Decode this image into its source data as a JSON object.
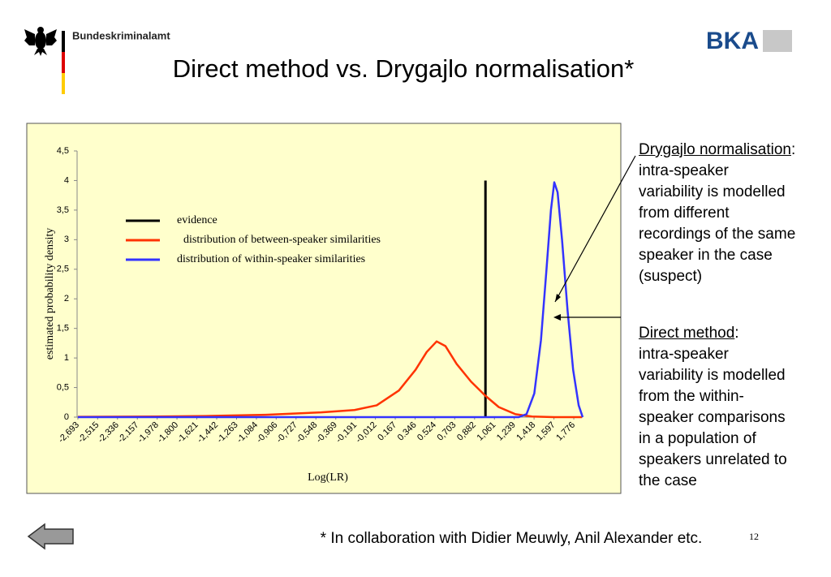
{
  "header": {
    "org": "Bundeskriminalamt",
    "logo": "BKA",
    "title": "Direct method vs. Drygajlo normalisation*",
    "page": "12"
  },
  "notes": [
    {
      "heading": "Drygajlo normalisation",
      "heading_suffix": ":",
      "lines": [
        "intra-speaker",
        "variability is modelled",
        "from different",
        "recordings of the same",
        "speaker in the case",
        "(suspect)"
      ]
    },
    {
      "heading": "Direct method",
      "heading_suffix": ":",
      "lines": [
        "intra-speaker",
        "variability is modelled",
        "from the within-",
        "speaker comparisons",
        "in a population of",
        "speakers unrelated to",
        "the case"
      ]
    }
  ],
  "footnote": "* In collaboration with Didier Meuwly, Anil Alexander etc.",
  "chart_data": {
    "type": "line",
    "xlabel": "Log(LR)",
    "ylabel": "estimated probability density",
    "xlim": [
      -2.7,
      1.856
    ],
    "ylim": [
      0,
      4.5
    ],
    "xticks": [
      {
        "value": -2.693,
        "label": "-2,693"
      },
      {
        "value": -2.515,
        "label": "-2,515"
      },
      {
        "value": -2.336,
        "label": "-2,336"
      },
      {
        "value": -2.157,
        "label": "-2,157"
      },
      {
        "value": -1.978,
        "label": "-1,978"
      },
      {
        "value": -1.8,
        "label": "-1,800"
      },
      {
        "value": -1.621,
        "label": "-1,621"
      },
      {
        "value": -1.442,
        "label": "-1,442"
      },
      {
        "value": -1.263,
        "label": "-1,263"
      },
      {
        "value": -1.084,
        "label": "-1,084"
      },
      {
        "value": -0.906,
        "label": "-0,906"
      },
      {
        "value": -0.727,
        "label": "-0,727"
      },
      {
        "value": -0.548,
        "label": "-0,548"
      },
      {
        "value": -0.369,
        "label": "-0,369"
      },
      {
        "value": -0.191,
        "label": "-0,191"
      },
      {
        "value": -0.012,
        "label": "-0,012"
      },
      {
        "value": 0.167,
        "label": "0.167"
      },
      {
        "value": 0.346,
        "label": "0.346"
      },
      {
        "value": 0.524,
        "label": "0.524"
      },
      {
        "value": 0.703,
        "label": "0,703"
      },
      {
        "value": 0.882,
        "label": "0,882"
      },
      {
        "value": 1.061,
        "label": "1,061"
      },
      {
        "value": 1.239,
        "label": "1,239"
      },
      {
        "value": 1.418,
        "label": "1,418"
      },
      {
        "value": 1.597,
        "label": "1,597"
      },
      {
        "value": 1.776,
        "label": "1,776"
      }
    ],
    "yticks": [
      0,
      {
        "value": 0.5,
        "label": "0,5"
      },
      1,
      {
        "value": 1.5,
        "label": "1,5"
      },
      2,
      {
        "value": 2.5,
        "label": "2,5"
      },
      3,
      {
        "value": 3.5,
        "label": "3,5"
      },
      4,
      {
        "value": 4.5,
        "label": "4,5"
      }
    ],
    "series": [
      {
        "name": "evidence",
        "color": "#000000",
        "x": [
          0.98,
          0.98
        ],
        "values": [
          0,
          4
        ]
      },
      {
        "name": "distribution of between-speaker similarities",
        "color": "#ff3300",
        "x": [
          -2.693,
          -2.0,
          -1.5,
          -1.0,
          -0.5,
          -0.2,
          0.0,
          0.2,
          0.35,
          0.45,
          0.54,
          0.62,
          0.72,
          0.85,
          0.98,
          1.1,
          1.25,
          1.4,
          1.6,
          1.85
        ],
        "values": [
          0.005,
          0.01,
          0.02,
          0.04,
          0.08,
          0.12,
          0.2,
          0.45,
          0.8,
          1.1,
          1.28,
          1.2,
          0.9,
          0.6,
          0.36,
          0.17,
          0.05,
          0.01,
          0,
          0
        ]
      },
      {
        "name": "distribution of within-speaker similarities",
        "color": "#3333ff",
        "x": [
          -2.693,
          1.28,
          1.35,
          1.42,
          1.48,
          1.53,
          1.57,
          1.6,
          1.63,
          1.67,
          1.72,
          1.77,
          1.82,
          1.856
        ],
        "values": [
          0,
          0,
          0.05,
          0.4,
          1.3,
          2.5,
          3.5,
          3.97,
          3.8,
          3.0,
          1.8,
          0.8,
          0.2,
          0
        ]
      }
    ]
  }
}
